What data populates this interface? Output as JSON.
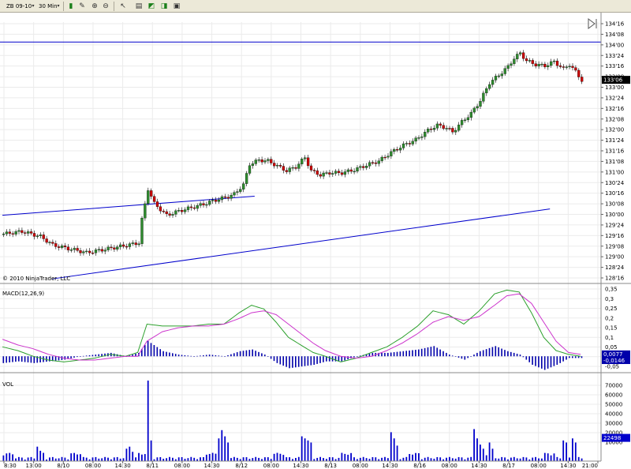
{
  "toolbar": {
    "instrument": "ZB 09-10",
    "interval": "30 Min",
    "icons": [
      "bars-icon",
      "pencil-icon",
      "zoom-in-icon",
      "zoom-out-icon",
      "cursor-icon",
      "properties-icon",
      "indicators-icon",
      "strategies-icon"
    ]
  },
  "copyright": "© 2010 NinjaTrader, LLC",
  "colors": {
    "up": "#2e8b2e",
    "down": "#cc0000",
    "line": "#0000cc",
    "macd": "#2ca02c",
    "signal": "#cc33cc",
    "hist": "#0000aa"
  },
  "chart_data": [
    {
      "type": "candlestick",
      "panel": "price",
      "instrument": "ZB 09-10",
      "interval": "30 Min",
      "price_axis_ticks": [
        "134'16",
        "134'08",
        "134'00",
        "133'24",
        "133'16",
        "133'08",
        "133'00",
        "132'24",
        "132'16",
        "132'08",
        "132'00",
        "131'24",
        "131'16",
        "131'08",
        "131'00",
        "130'24",
        "130'16",
        "130'08",
        "130'00",
        "129'24",
        "129'16",
        "129'08",
        "129'00",
        "128'24",
        "128'16"
      ],
      "ylim": [
        128.45,
        134.55
      ],
      "last_price": "133'06",
      "close_path": [
        [
          0,
          129.56
        ],
        [
          6,
          129.62
        ],
        [
          12,
          129.5
        ],
        [
          16,
          129.3
        ],
        [
          22,
          129.2
        ],
        [
          27,
          129.12
        ],
        [
          33,
          129.2
        ],
        [
          39,
          129.28
        ],
        [
          44,
          129.35
        ],
        [
          45,
          129.9
        ],
        [
          47,
          130.62
        ],
        [
          49,
          130.28
        ],
        [
          53,
          130.0
        ],
        [
          57,
          130.1
        ],
        [
          61,
          130.18
        ],
        [
          65,
          130.26
        ],
        [
          69,
          130.36
        ],
        [
          73,
          130.44
        ],
        [
          75,
          130.5
        ],
        [
          78,
          130.72
        ],
        [
          80,
          131.2
        ],
        [
          83,
          131.3
        ],
        [
          86,
          131.28
        ],
        [
          89,
          131.16
        ],
        [
          92,
          131.05
        ],
        [
          95,
          131.14
        ],
        [
          98,
          131.36
        ],
        [
          100,
          131.05
        ],
        [
          103,
          130.95
        ],
        [
          106,
          131.0
        ],
        [
          110,
          131.0
        ],
        [
          114,
          131.07
        ],
        [
          118,
          131.18
        ],
        [
          122,
          131.28
        ],
        [
          126,
          131.48
        ],
        [
          130,
          131.65
        ],
        [
          134,
          131.78
        ],
        [
          138,
          132.0
        ],
        [
          141,
          132.12
        ],
        [
          144,
          132.06
        ],
        [
          146,
          131.96
        ],
        [
          149,
          132.2
        ],
        [
          152,
          132.4
        ],
        [
          155,
          132.7
        ],
        [
          158,
          133.12
        ],
        [
          161,
          133.3
        ],
        [
          164,
          133.5
        ],
        [
          166,
          133.7
        ],
        [
          168,
          133.82
        ],
        [
          170,
          133.64
        ],
        [
          173,
          133.55
        ],
        [
          176,
          133.52
        ],
        [
          179,
          133.62
        ],
        [
          182,
          133.45
        ],
        [
          184,
          133.55
        ],
        [
          186,
          133.38
        ],
        [
          188,
          133.18
        ]
      ],
      "bars": 189,
      "lines": [
        {
          "from": [
            0,
            130.0
          ],
          "to": [
            82,
            130.45
          ]
        },
        {
          "from": [
            16,
            128.5
          ],
          "to": [
            178,
            130.15
          ]
        },
        {
          "horizontal": 134.08
        }
      ]
    },
    {
      "type": "line",
      "panel": "macd",
      "title": "MACD(12,26,9)",
      "axis_ticks": [
        "0,35",
        "0,3",
        "0,25",
        "0,2",
        "0,15",
        "0,1",
        "0,05",
        "0",
        "-0,05"
      ],
      "ylim": [
        -0.07,
        0.36
      ],
      "readouts": [
        "0,0077",
        "-0,0146"
      ],
      "macd": [
        [
          0,
          0.05
        ],
        [
          5,
          0.03
        ],
        [
          10,
          0.0
        ],
        [
          15,
          -0.02
        ],
        [
          20,
          -0.03
        ],
        [
          25,
          -0.02
        ],
        [
          30,
          -0.01
        ],
        [
          35,
          0.01
        ],
        [
          40,
          0.0
        ],
        [
          44,
          0.02
        ],
        [
          47,
          0.17
        ],
        [
          52,
          0.16
        ],
        [
          57,
          0.16
        ],
        [
          62,
          0.16
        ],
        [
          67,
          0.17
        ],
        [
          72,
          0.17
        ],
        [
          77,
          0.23
        ],
        [
          81,
          0.27
        ],
        [
          85,
          0.25
        ],
        [
          89,
          0.18
        ],
        [
          93,
          0.1
        ],
        [
          97,
          0.06
        ],
        [
          101,
          0.02
        ],
        [
          105,
          0.0
        ],
        [
          110,
          -0.03
        ],
        [
          115,
          -0.01
        ],
        [
          120,
          0.02
        ],
        [
          125,
          0.05
        ],
        [
          130,
          0.1
        ],
        [
          135,
          0.16
        ],
        [
          140,
          0.24
        ],
        [
          145,
          0.22
        ],
        [
          150,
          0.17
        ],
        [
          155,
          0.24
        ],
        [
          160,
          0.33
        ],
        [
          164,
          0.35
        ],
        [
          168,
          0.34
        ],
        [
          172,
          0.23
        ],
        [
          176,
          0.1
        ],
        [
          180,
          0.03
        ],
        [
          184,
          0.01
        ],
        [
          188,
          0.0
        ]
      ],
      "signal": [
        [
          0,
          0.09
        ],
        [
          5,
          0.06
        ],
        [
          10,
          0.04
        ],
        [
          15,
          0.01
        ],
        [
          20,
          -0.01
        ],
        [
          25,
          -0.02
        ],
        [
          30,
          -0.02
        ],
        [
          35,
          -0.01
        ],
        [
          40,
          0.0
        ],
        [
          44,
          0.0
        ],
        [
          47,
          0.08
        ],
        [
          52,
          0.13
        ],
        [
          57,
          0.15
        ],
        [
          62,
          0.16
        ],
        [
          67,
          0.16
        ],
        [
          72,
          0.17
        ],
        [
          77,
          0.2
        ],
        [
          81,
          0.23
        ],
        [
          85,
          0.24
        ],
        [
          89,
          0.22
        ],
        [
          93,
          0.17
        ],
        [
          97,
          0.12
        ],
        [
          101,
          0.07
        ],
        [
          105,
          0.03
        ],
        [
          110,
          0.0
        ],
        [
          115,
          -0.01
        ],
        [
          120,
          0.0
        ],
        [
          125,
          0.03
        ],
        [
          130,
          0.07
        ],
        [
          135,
          0.12
        ],
        [
          140,
          0.18
        ],
        [
          145,
          0.21
        ],
        [
          150,
          0.19
        ],
        [
          155,
          0.21
        ],
        [
          160,
          0.27
        ],
        [
          164,
          0.32
        ],
        [
          168,
          0.33
        ],
        [
          172,
          0.28
        ],
        [
          176,
          0.18
        ],
        [
          180,
          0.08
        ],
        [
          184,
          0.02
        ],
        [
          188,
          0.01
        ]
      ]
    },
    {
      "type": "bar",
      "panel": "volume",
      "title": "VOL",
      "axis_ticks": [
        "70000",
        "60000",
        "50000",
        "40000",
        "30000",
        "20000",
        "10000"
      ],
      "ylim": [
        0,
        78000
      ],
      "readout": "22498",
      "spikes": [
        [
          11,
          14000
        ],
        [
          12,
          10000
        ],
        [
          13,
          8000
        ],
        [
          40,
          12000
        ],
        [
          41,
          14000
        ],
        [
          42,
          9000
        ],
        [
          47,
          78000
        ],
        [
          48,
          20000
        ],
        [
          70,
          22000
        ],
        [
          71,
          30000
        ],
        [
          72,
          24000
        ],
        [
          73,
          18000
        ],
        [
          97,
          24000
        ],
        [
          98,
          22000
        ],
        [
          99,
          20000
        ],
        [
          100,
          18000
        ],
        [
          126,
          28000
        ],
        [
          127,
          22000
        ],
        [
          128,
          15000
        ],
        [
          153,
          31000
        ],
        [
          154,
          22000
        ],
        [
          155,
          16000
        ],
        [
          156,
          12000
        ],
        [
          158,
          18000
        ],
        [
          159,
          12000
        ],
        [
          182,
          20000
        ],
        [
          183,
          18000
        ],
        [
          185,
          22000
        ],
        [
          186,
          18000
        ]
      ]
    }
  ],
  "time_axis": [
    "8:30",
    "13:00",
    "8/10",
    "08:00",
    "14:30",
    "8/11",
    "08:00",
    "14:30",
    "8/12",
    "08:00",
    "14:30",
    "8/13",
    "08:00",
    "14:30",
    "8/16",
    "08:00",
    "14:30",
    "8/17",
    "08:00",
    "14:30",
    "21:00"
  ]
}
